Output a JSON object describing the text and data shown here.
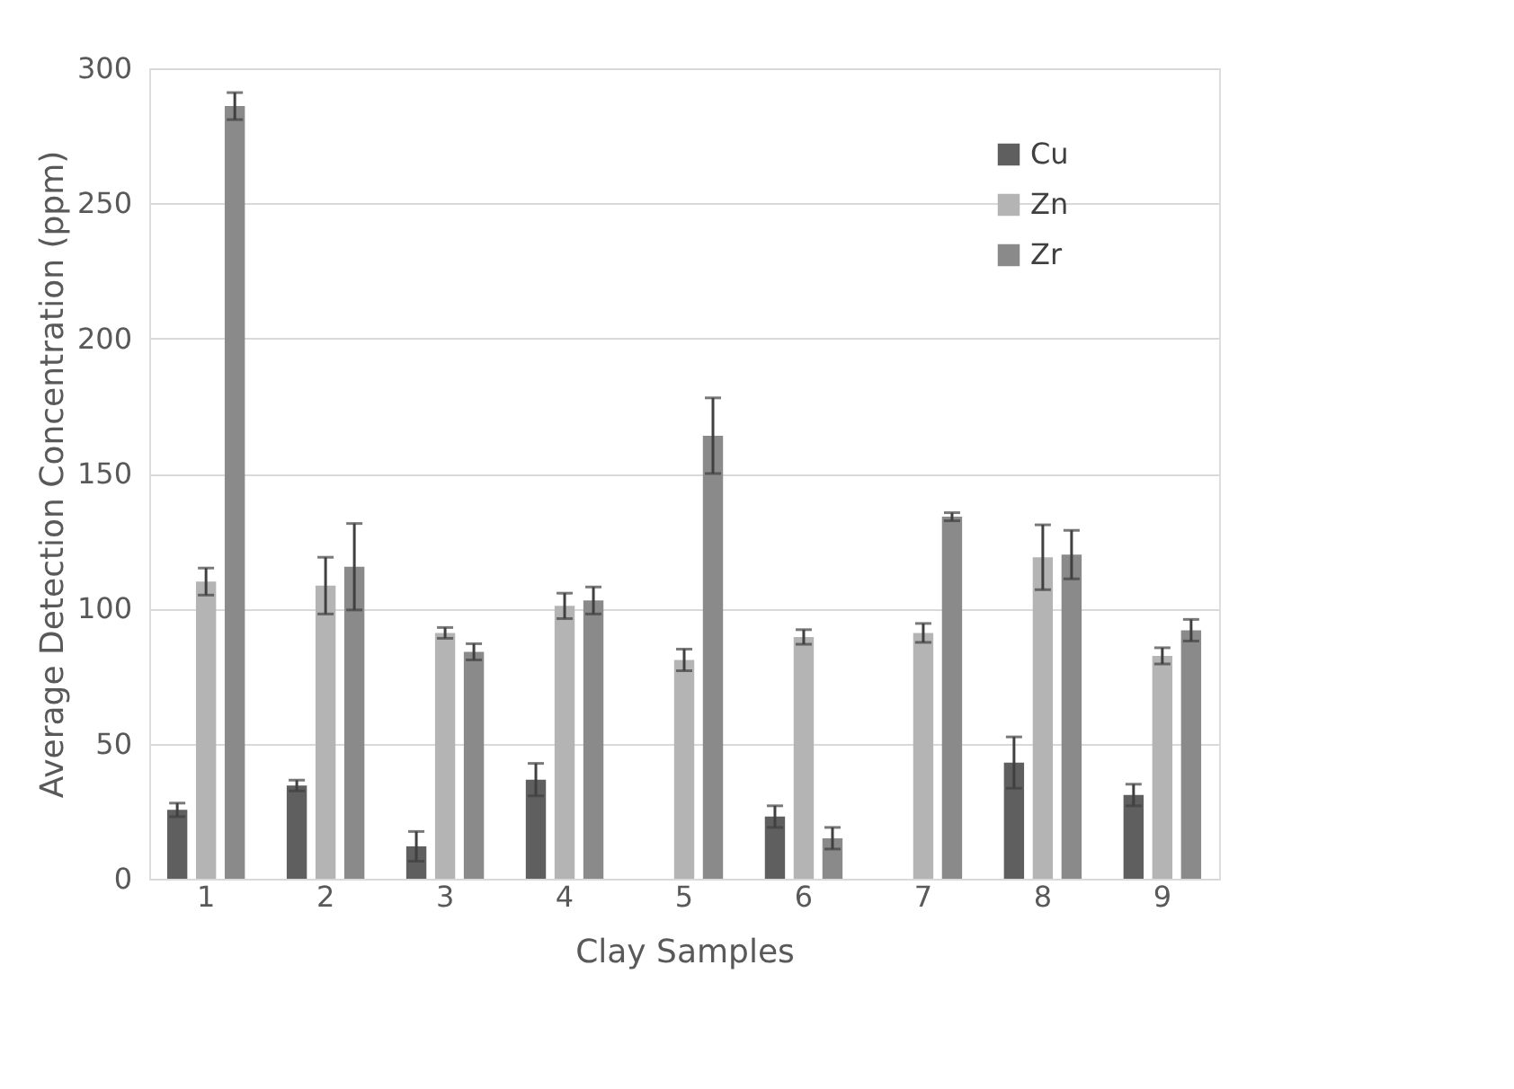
{
  "chart_data": {
    "type": "bar",
    "xlabel": "Clay Samples",
    "ylabel": "Average Detection Concentration (ppm)",
    "categories": [
      "1",
      "2",
      "3",
      "4",
      "5",
      "6",
      "7",
      "8",
      "9"
    ],
    "series": [
      {
        "name": "Cu",
        "color": "#5f5f5f",
        "values": [
          25.5,
          34.5,
          12,
          36.7,
          null,
          23,
          null,
          43,
          31
        ],
        "errors": [
          2.5,
          2,
          5.5,
          6,
          null,
          4,
          null,
          9.5,
          4
        ]
      },
      {
        "name": "Zn",
        "color": "#b4b4b4",
        "values": [
          110,
          108.5,
          91,
          101,
          81,
          89.5,
          91,
          119,
          82.5
        ],
        "errors": [
          5,
          10.5,
          2,
          4.7,
          4,
          2.7,
          3.5,
          12,
          3
        ]
      },
      {
        "name": "Zr",
        "color": "#8a8a8a",
        "values": [
          286,
          115.5,
          84,
          103,
          164,
          15,
          134,
          120,
          92
        ],
        "errors": [
          5,
          16,
          3,
          5,
          14,
          4,
          1.5,
          9,
          4
        ]
      }
    ],
    "ylim": [
      0,
      300
    ],
    "yticks": [
      0,
      50,
      100,
      150,
      200,
      250,
      300
    ],
    "grid": "y",
    "legend": "top right"
  }
}
